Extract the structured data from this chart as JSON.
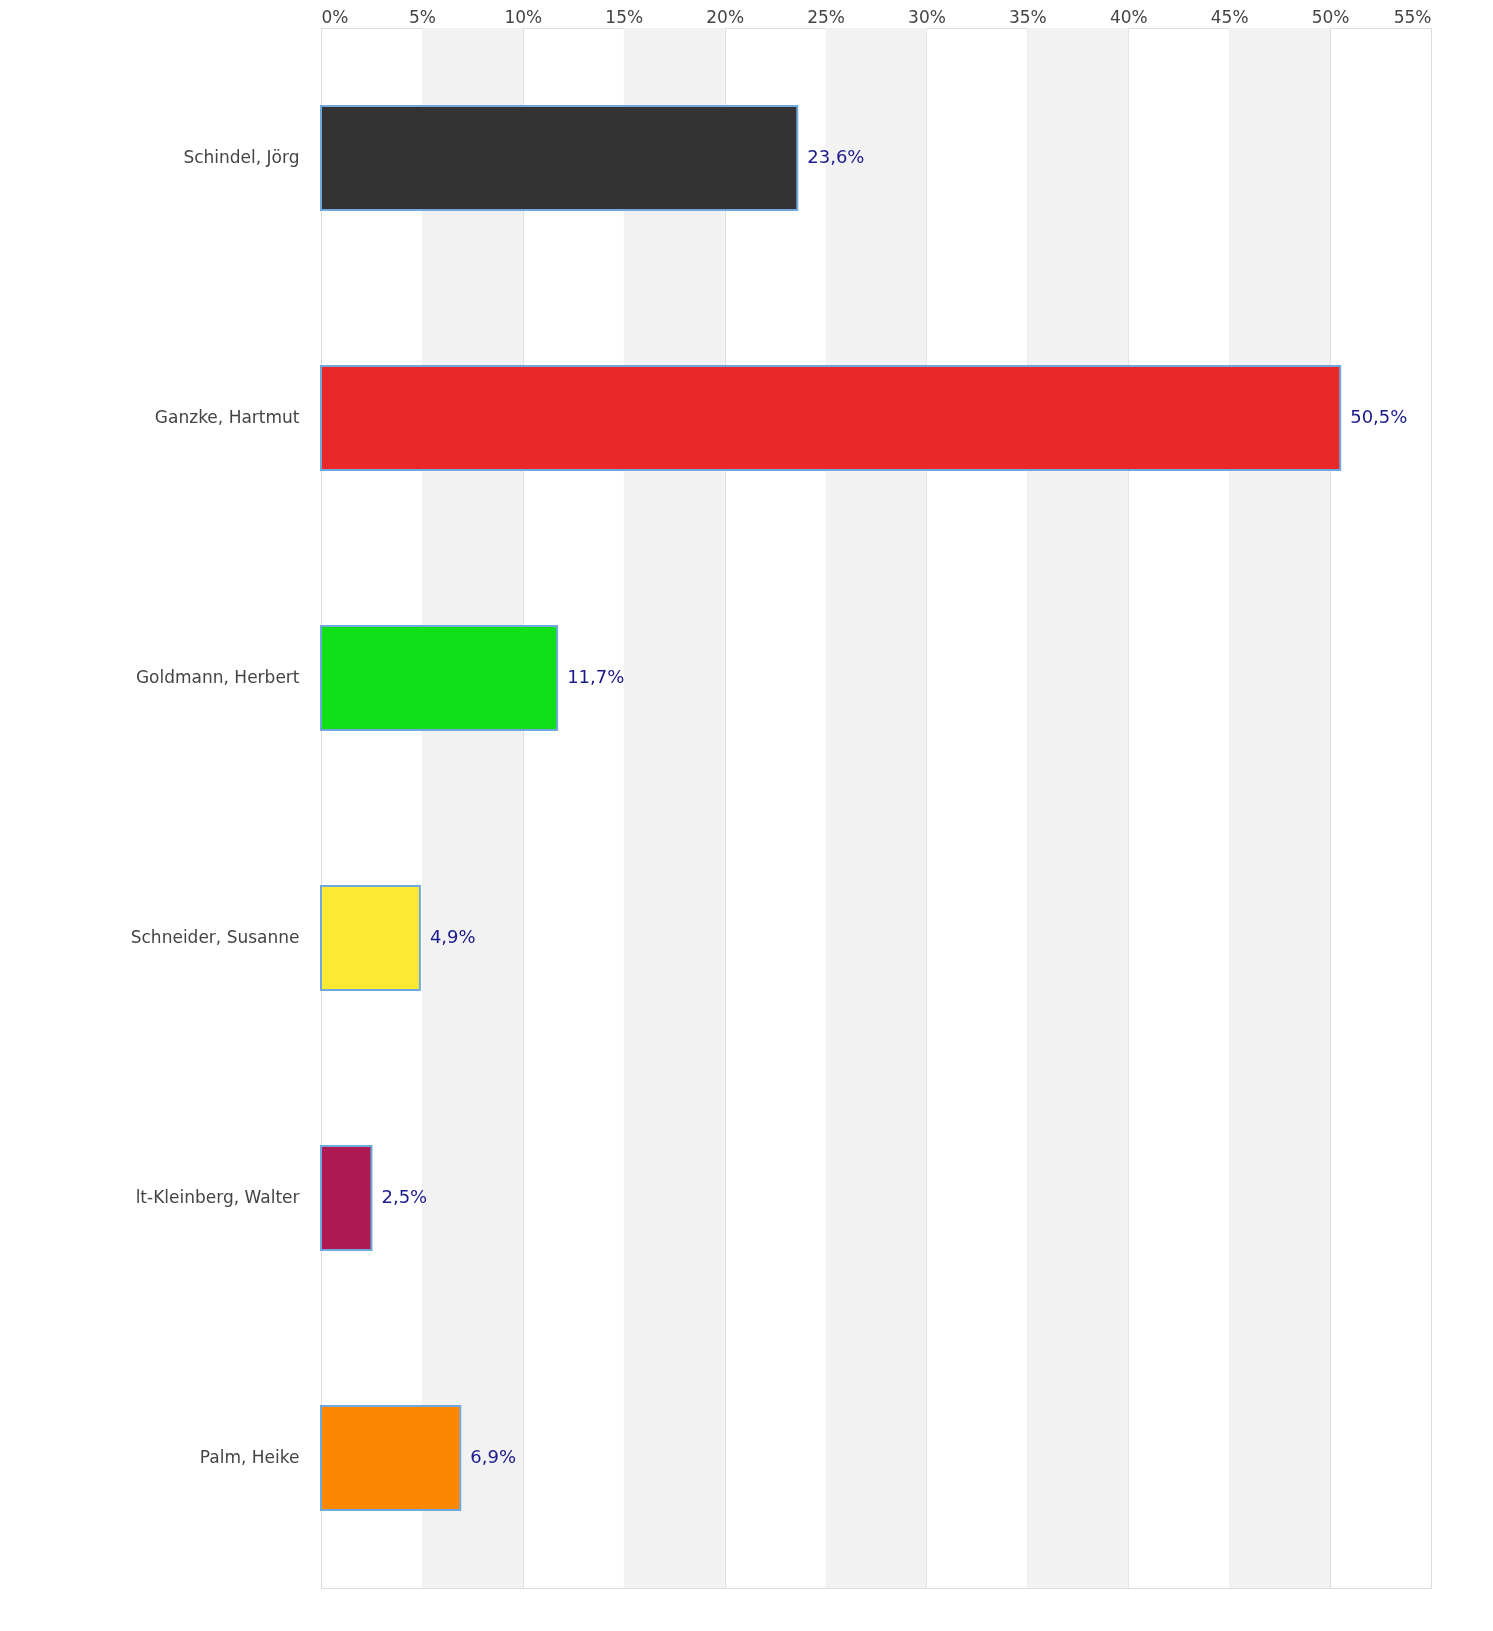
{
  "chart_data": {
    "type": "bar",
    "orientation": "horizontal",
    "categories": [
      "Schindel, Jörg",
      "Ganzke, Hartmut",
      "Goldmann, Herbert",
      "Schneider, Susanne",
      "lt-Kleinberg, Walter",
      "Palm, Heike"
    ],
    "values": [
      23.6,
      50.5,
      11.7,
      4.9,
      2.5,
      6.9
    ],
    "colors": [
      "#333333",
      "#e8282a",
      "#0fe01a",
      "#fbe934",
      "#ad1950",
      "#fd8700"
    ],
    "value_labels": [
      "23,6%",
      "50,5%",
      "11,7%",
      "4,9%",
      "2,5%",
      "6,9%"
    ],
    "xlim": [
      0,
      55
    ],
    "xticks": [
      {
        "value": 0,
        "label": "0%"
      },
      {
        "value": 5,
        "label": "5%"
      },
      {
        "value": 10,
        "label": "10%"
      },
      {
        "value": 15,
        "label": "15%"
      },
      {
        "value": 20,
        "label": "20%"
      },
      {
        "value": 25,
        "label": "25%"
      },
      {
        "value": 30,
        "label": "30%"
      },
      {
        "value": 35,
        "label": "35%"
      },
      {
        "value": 40,
        "label": "40%"
      },
      {
        "value": 45,
        "label": "45%"
      },
      {
        "value": 50,
        "label": "50%"
      },
      {
        "value": 55,
        "label": "55%"
      }
    ],
    "bands": [
      {
        "axis": "x",
        "from": 5,
        "to": 10,
        "color": "#f2f2f2"
      },
      {
        "axis": "x",
        "from": 15,
        "to": 20,
        "color": "#f2f2f2"
      },
      {
        "axis": "x",
        "from": 25,
        "to": 30,
        "color": "#f2f2f2"
      },
      {
        "axis": "x",
        "from": 35,
        "to": 40,
        "color": "#f2f2f2"
      },
      {
        "axis": "x",
        "from": 45,
        "to": 50,
        "color": "#f2f2f2"
      }
    ],
    "grid": "x"
  }
}
